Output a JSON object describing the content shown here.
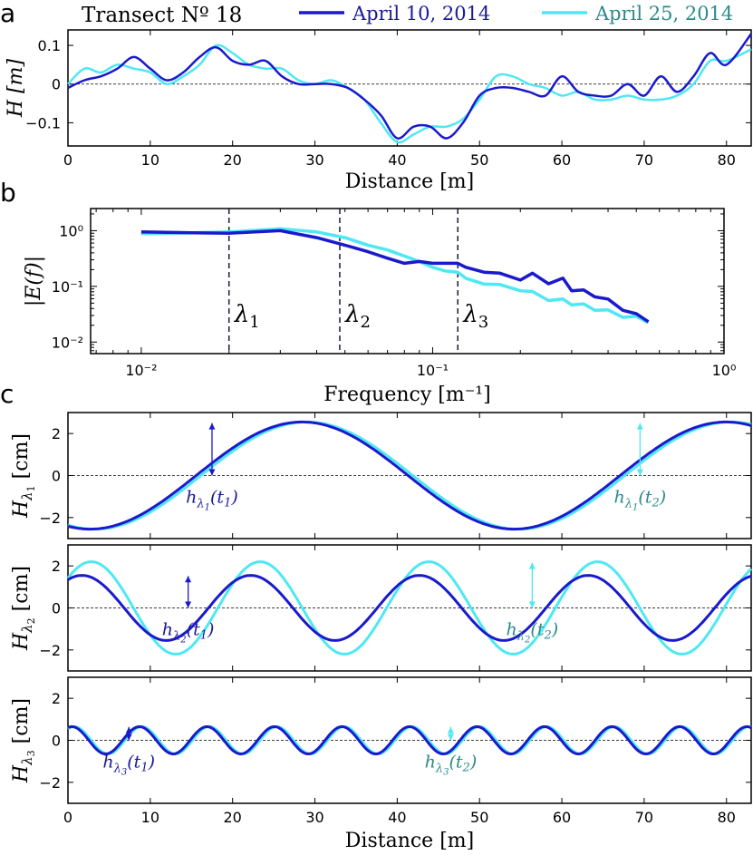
{
  "colors": {
    "dark": "#1a1acc",
    "light": "#4ee8f4",
    "darkText": "#1a1a99",
    "lightText": "#2a8a8a"
  },
  "panel_letters": [
    "a",
    "b",
    "c"
  ],
  "legend": {
    "title": "Transect Nº 18",
    "entries": [
      "April 10, 2014",
      "April 25, 2014"
    ]
  },
  "chart_data": [
    {
      "id": "a",
      "type": "line",
      "xlabel": "Distance [m]",
      "ylabel": "H [m]",
      "xlim": [
        0,
        83
      ],
      "ylim": [
        -0.16,
        0.14
      ],
      "xticks": [
        0,
        10,
        20,
        30,
        40,
        50,
        60,
        70,
        80
      ],
      "yticks": [
        -0.1,
        0,
        0.1
      ],
      "ytick_labels": [
        "−0.1",
        "0",
        "0.1"
      ],
      "series": [
        {
          "name": "April 10, 2014",
          "x": [
            0,
            2,
            4,
            6,
            8,
            10,
            12,
            14,
            16,
            18,
            20,
            22,
            24,
            26,
            28,
            30,
            32,
            34,
            36,
            38,
            40,
            42,
            44,
            46,
            48,
            50,
            52,
            54,
            56,
            58,
            60,
            62,
            64,
            66,
            68,
            70,
            72,
            74,
            76,
            78,
            80,
            83
          ],
          "y": [
            -0.01,
            0.01,
            0.02,
            0.04,
            0.07,
            0.04,
            0.01,
            0.03,
            0.07,
            0.095,
            0.06,
            0.05,
            0.06,
            0.02,
            0.0,
            0.0,
            0.0,
            -0.01,
            -0.04,
            -0.08,
            -0.14,
            -0.11,
            -0.11,
            -0.14,
            -0.1,
            -0.03,
            -0.01,
            -0.01,
            -0.02,
            -0.03,
            0.02,
            -0.02,
            -0.03,
            -0.03,
            0.0,
            -0.03,
            0.02,
            -0.02,
            0.02,
            0.08,
            0.05,
            0.13
          ]
        },
        {
          "name": "April 25, 2014",
          "x": [
            0,
            2,
            4,
            6,
            8,
            10,
            12,
            14,
            16,
            18,
            20,
            22,
            24,
            26,
            28,
            30,
            32,
            34,
            36,
            38,
            40,
            42,
            44,
            46,
            48,
            50,
            52,
            54,
            56,
            58,
            60,
            62,
            64,
            66,
            68,
            70,
            72,
            74,
            76,
            78,
            80,
            83
          ],
          "y": [
            0.0,
            0.04,
            0.03,
            0.05,
            0.04,
            0.03,
            0.0,
            0.02,
            0.05,
            0.1,
            0.08,
            0.05,
            0.04,
            0.04,
            0.01,
            0.0,
            0.01,
            -0.01,
            -0.04,
            -0.1,
            -0.15,
            -0.13,
            -0.11,
            -0.11,
            -0.09,
            -0.04,
            0.02,
            0.02,
            0.0,
            -0.01,
            -0.03,
            -0.02,
            -0.04,
            -0.04,
            -0.03,
            -0.04,
            -0.04,
            -0.03,
            0.0,
            0.06,
            0.06,
            0.09
          ]
        }
      ]
    },
    {
      "id": "b",
      "type": "line",
      "xlabel": "Frequency [m⁻¹]",
      "ylabel": "|E(f)|",
      "xscale": "log",
      "yscale": "log",
      "xlim": [
        0.0067,
        1.0
      ],
      "ylim": [
        0.0062,
        2.5
      ],
      "xticks": [
        0.01,
        0.1,
        1
      ],
      "xtick_labels": [
        "10⁻²",
        "10⁻¹",
        "10⁰"
      ],
      "yticks": [
        0.01,
        0.1,
        1
      ],
      "ytick_labels": [
        "10⁻²",
        "10⁻¹",
        "10⁰"
      ],
      "vlines": [
        {
          "x": 0.02,
          "label": "λ₁"
        },
        {
          "x": 0.048,
          "label": "λ₂"
        },
        {
          "x": 0.122,
          "label": "λ₃"
        }
      ],
      "series": [
        {
          "name": "April 10, 2014",
          "x": [
            0.01,
            0.015,
            0.02,
            0.03,
            0.04,
            0.05,
            0.06,
            0.07,
            0.08,
            0.09,
            0.1,
            0.11,
            0.122,
            0.13,
            0.15,
            0.17,
            0.2,
            0.22,
            0.25,
            0.28,
            0.3,
            0.33,
            0.36,
            0.4,
            0.45,
            0.5,
            0.55
          ],
          "y": [
            0.95,
            0.92,
            0.9,
            1.0,
            0.75,
            0.55,
            0.42,
            0.32,
            0.26,
            0.28,
            0.26,
            0.26,
            0.26,
            0.22,
            0.18,
            0.16,
            0.14,
            0.16,
            0.12,
            0.13,
            0.09,
            0.08,
            0.07,
            0.055,
            0.04,
            0.03,
            0.025
          ]
        },
        {
          "name": "April 25, 2014",
          "x": [
            0.01,
            0.015,
            0.02,
            0.03,
            0.04,
            0.05,
            0.06,
            0.07,
            0.08,
            0.09,
            0.1,
            0.11,
            0.122,
            0.13,
            0.15,
            0.17,
            0.2,
            0.22,
            0.25,
            0.28,
            0.3,
            0.33,
            0.36,
            0.4,
            0.45,
            0.5,
            0.55
          ],
          "y": [
            0.88,
            0.92,
            0.95,
            1.08,
            0.95,
            0.75,
            0.55,
            0.45,
            0.35,
            0.28,
            0.22,
            0.19,
            0.18,
            0.14,
            0.11,
            0.1,
            0.09,
            0.075,
            0.06,
            0.055,
            0.05,
            0.045,
            0.04,
            0.035,
            0.03,
            0.027,
            0.024
          ]
        }
      ]
    },
    {
      "id": "c1",
      "type": "line",
      "xlabel": "",
      "ylabel": "H_λ1 [cm]",
      "xlim": [
        0,
        83
      ],
      "ylim": [
        -3,
        3
      ],
      "xticks": [
        0,
        10,
        20,
        30,
        40,
        50,
        60,
        70,
        80
      ],
      "yticks": [
        -2,
        0,
        2
      ],
      "ytick_labels": [
        "−2",
        "0",
        "2"
      ],
      "wave": {
        "wavelength": 51.5,
        "amplitudes": [
          2.55,
          2.55
        ],
        "phases_deg": [
          0,
          4
        ]
      },
      "annotations": [
        {
          "text": "h_λ1(t1)",
          "x": 17.5,
          "series": 0
        },
        {
          "text": "h_λ1(t2)",
          "x": 69.5,
          "series": 1
        }
      ]
    },
    {
      "id": "c2",
      "type": "line",
      "xlabel": "",
      "ylabel": "H_λ2 [cm]",
      "xlim": [
        0,
        83
      ],
      "ylim": [
        -3,
        3
      ],
      "xticks": [
        0,
        10,
        20,
        30,
        40,
        50,
        60,
        70,
        80
      ],
      "yticks": [
        -2,
        0,
        2
      ],
      "ytick_labels": [
        "−2",
        "0",
        "2"
      ],
      "wave": {
        "wavelength": 20.5,
        "amplitudes": [
          1.55,
          2.2
        ],
        "phases_deg": [
          0,
          20
        ]
      },
      "annotations": [
        {
          "text": "h_λ2(t1)",
          "x": 14.6,
          "series": 0
        },
        {
          "text": "h_λ2(t2)",
          "x": 56.4,
          "series": 1
        }
      ]
    },
    {
      "id": "c3",
      "type": "line",
      "xlabel": "Distance [m]",
      "ylabel": "H_λ3 [cm]",
      "xlim": [
        0,
        83
      ],
      "ylim": [
        -3,
        3
      ],
      "xticks": [
        0,
        10,
        20,
        30,
        40,
        50,
        60,
        70,
        80
      ],
      "yticks": [
        -2,
        0,
        2
      ],
      "ytick_labels": [
        "−2",
        "0",
        "2"
      ],
      "wave": {
        "wavelength": 8.2,
        "amplitudes": [
          0.65,
          0.65
        ],
        "phases_deg": [
          0,
          12
        ]
      },
      "annotations": [
        {
          "text": "h_λ3(t1)",
          "x": 7.4,
          "series": 0
        },
        {
          "text": "h_λ3(t2)",
          "x": 46.5,
          "series": 1
        }
      ]
    }
  ]
}
